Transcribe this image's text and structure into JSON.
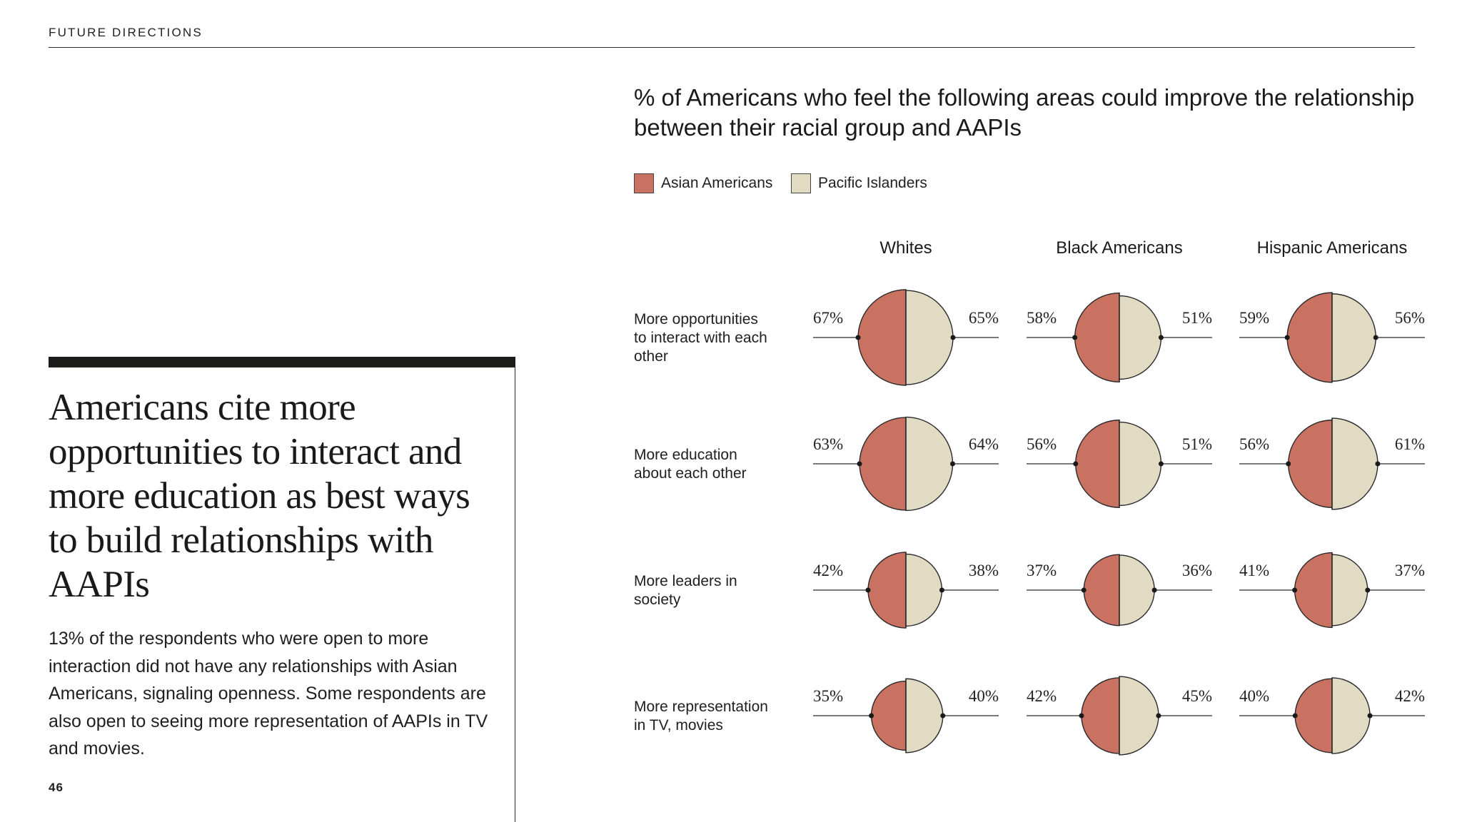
{
  "section_label": "FUTURE DIRECTIONS",
  "headline": "Americans cite more opportunities to interact and more education as best ways to build relationships with AAPIs",
  "body_text": "13% of the respondents who were open to more interaction did not have any relationships with Asian Americans, signaling openness. Some respondents are also open to seeing more representation of AAPIs in TV and movies.",
  "page_number": "46",
  "colors": {
    "asian_americans": "#c97262",
    "pacific_islanders": "#e2dbc3",
    "outline": "#2a2a2a"
  },
  "chart_data": {
    "type": "split-circle",
    "title": "% of Americans who feel the following areas could improve the relationship between their racial group and AAPIs",
    "legend": [
      "Asian Americans",
      "Pacific Islanders"
    ],
    "legend_placement": "top-left",
    "columns": [
      "Whites",
      "Black Americans",
      "Hispanic Americans"
    ],
    "rows": [
      {
        "label_lines": [
          "More opportunities",
          "to interact with each",
          "other"
        ],
        "values": [
          {
            "asian": 67,
            "pacific": 65
          },
          {
            "asian": 58,
            "pacific": 51
          },
          {
            "asian": 59,
            "pacific": 56
          }
        ]
      },
      {
        "label_lines": [
          "More education",
          "about each other"
        ],
        "values": [
          {
            "asian": 63,
            "pacific": 64
          },
          {
            "asian": 56,
            "pacific": 51
          },
          {
            "asian": 56,
            "pacific": 61
          }
        ]
      },
      {
        "label_lines": [
          "More leaders in",
          "society"
        ],
        "values": [
          {
            "asian": 42,
            "pacific": 38
          },
          {
            "asian": 37,
            "pacific": 36
          },
          {
            "asian": 41,
            "pacific": 37
          }
        ]
      },
      {
        "label_lines": [
          "More representation",
          "in TV, movies"
        ],
        "values": [
          {
            "asian": 35,
            "pacific": 40
          },
          {
            "asian": 42,
            "pacific": 45
          },
          {
            "asian": 40,
            "pacific": 42
          }
        ]
      }
    ]
  }
}
